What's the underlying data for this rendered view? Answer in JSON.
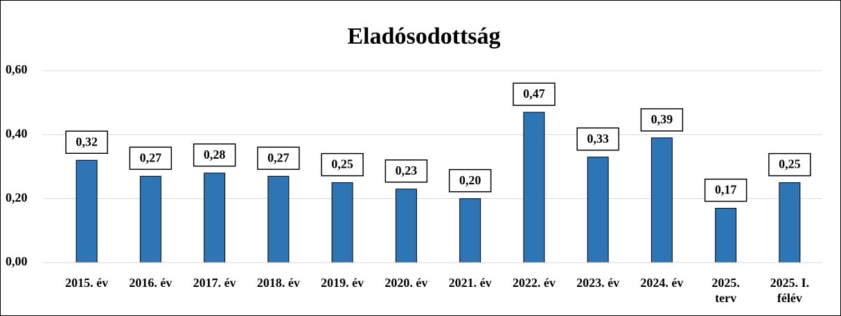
{
  "chart_data": {
    "type": "bar",
    "title": "Eladósodottság",
    "categories": [
      "2015. év",
      "2016. év",
      "2017. év",
      "2018. év",
      "2019. év",
      "2020. év",
      "2021. év",
      "2022. év",
      "2023. év",
      "2024. év",
      "2025. terv",
      "2025. I. félév"
    ],
    "values": [
      0.32,
      0.27,
      0.28,
      0.27,
      0.25,
      0.23,
      0.2,
      0.47,
      0.33,
      0.39,
      0.17,
      0.25
    ],
    "value_labels": [
      "0,32",
      "0,27",
      "0,28",
      "0,27",
      "0,25",
      "0,23",
      "0,20",
      "0,47",
      "0,33",
      "0,39",
      "0,17",
      "0,25"
    ],
    "color": "#2e75b6",
    "ylim": [
      0,
      0.6
    ],
    "yticks": [
      {
        "value": 0,
        "label": "0,00"
      },
      {
        "value": 0.2,
        "label": "0,20"
      },
      {
        "value": 0.4,
        "label": "0,40"
      },
      {
        "value": 0.6,
        "label": "0,60"
      }
    ],
    "grid": true
  }
}
